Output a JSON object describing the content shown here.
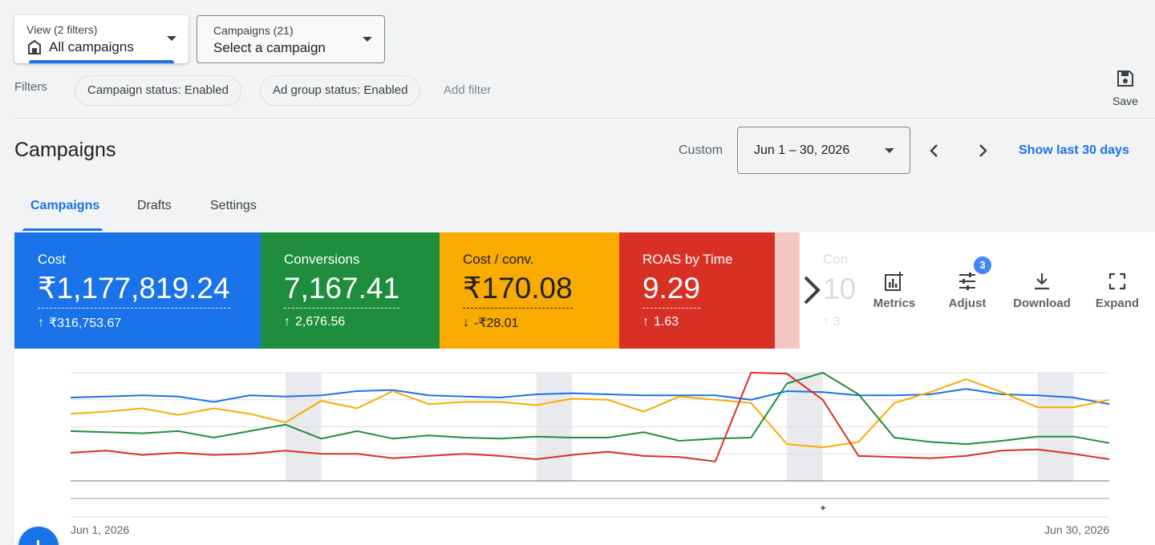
{
  "view_dropdown": {
    "sublabel": "View (2 filters)",
    "value": "All campaigns",
    "icon": "store-icon"
  },
  "campaign_dropdown": {
    "sublabel": "Campaigns (21)",
    "value": "Select a campaign"
  },
  "filters": {
    "label": "Filters",
    "chips": [
      "Campaign status: Enabled",
      "Ad group status: Enabled"
    ],
    "add_filter": "Add filter"
  },
  "save": {
    "label": "Save",
    "icon": "save-icon"
  },
  "page_title": "Campaigns",
  "date_range": {
    "preset": "Custom",
    "value": "Jun 1 – 30, 2026",
    "show_last": "Show last 30 days"
  },
  "tabs": [
    {
      "label": "Campaigns",
      "active": true
    },
    {
      "label": "Drafts",
      "active": false
    },
    {
      "label": "Settings",
      "active": false
    }
  ],
  "scorecards": [
    {
      "label": "Cost",
      "value": "₹1,177,819.24",
      "delta": "₹316,753.67",
      "direction": "up",
      "color": "#1a73e8"
    },
    {
      "label": "Conversions",
      "value": "7,167.41",
      "delta": "2,676.56",
      "direction": "up",
      "color": "#1e8e3e"
    },
    {
      "label": "Cost / conv.",
      "value": "₹170.08",
      "delta": "-₹28.01",
      "direction": "down",
      "color": "#f9ab00"
    },
    {
      "label": "ROAS by Time",
      "value": "9.29",
      "delta": "1.63",
      "direction": "up",
      "color": "#d93025"
    }
  ],
  "hidden_card": {
    "label": "Con",
    "value": "10",
    "delta": "3"
  },
  "toolbar": {
    "metrics": "Metrics",
    "adjust": "Adjust",
    "adjust_badge": "3",
    "download": "Download",
    "expand": "Expand"
  },
  "chart_data": {
    "type": "line",
    "x_start_label": "Jun 1, 2026",
    "x_end_label": "Jun 30, 2026",
    "ylim": [
      0,
      100
    ],
    "weekend_bands": [
      [
        6,
        7
      ],
      [
        13,
        14
      ],
      [
        20,
        21
      ],
      [
        27,
        28
      ]
    ],
    "series": [
      {
        "color": "#1a73e8",
        "values": [
          77,
          78,
          79,
          78,
          73,
          79,
          78,
          79,
          83,
          84,
          79,
          78,
          77,
          80,
          81,
          80,
          79,
          79,
          79,
          75,
          83,
          82,
          79,
          79,
          80,
          85,
          80,
          79,
          77,
          71
        ]
      },
      {
        "color": "#f9ab00",
        "values": [
          62,
          64,
          67,
          61,
          67,
          62,
          54,
          74,
          67,
          83,
          71,
          73,
          73,
          70,
          76,
          75,
          64,
          78,
          75,
          72,
          34,
          31,
          36,
          72,
          82,
          94,
          82,
          68,
          68,
          75
        ]
      },
      {
        "color": "#1e8e3e",
        "values": [
          46,
          45,
          44,
          46,
          40,
          46,
          52,
          39,
          46,
          39,
          42,
          40,
          39,
          41,
          40,
          40,
          45,
          37,
          39,
          40,
          90,
          100,
          80,
          40,
          36,
          34,
          37,
          41,
          41,
          35
        ]
      },
      {
        "color": "#d93025",
        "values": [
          26,
          28,
          24,
          26,
          24,
          25,
          28,
          25,
          25,
          21,
          23,
          25,
          23,
          20,
          24,
          27,
          23,
          22,
          18,
          100,
          99,
          75,
          23,
          22,
          21,
          23,
          28,
          29,
          25,
          20
        ]
      }
    ]
  }
}
